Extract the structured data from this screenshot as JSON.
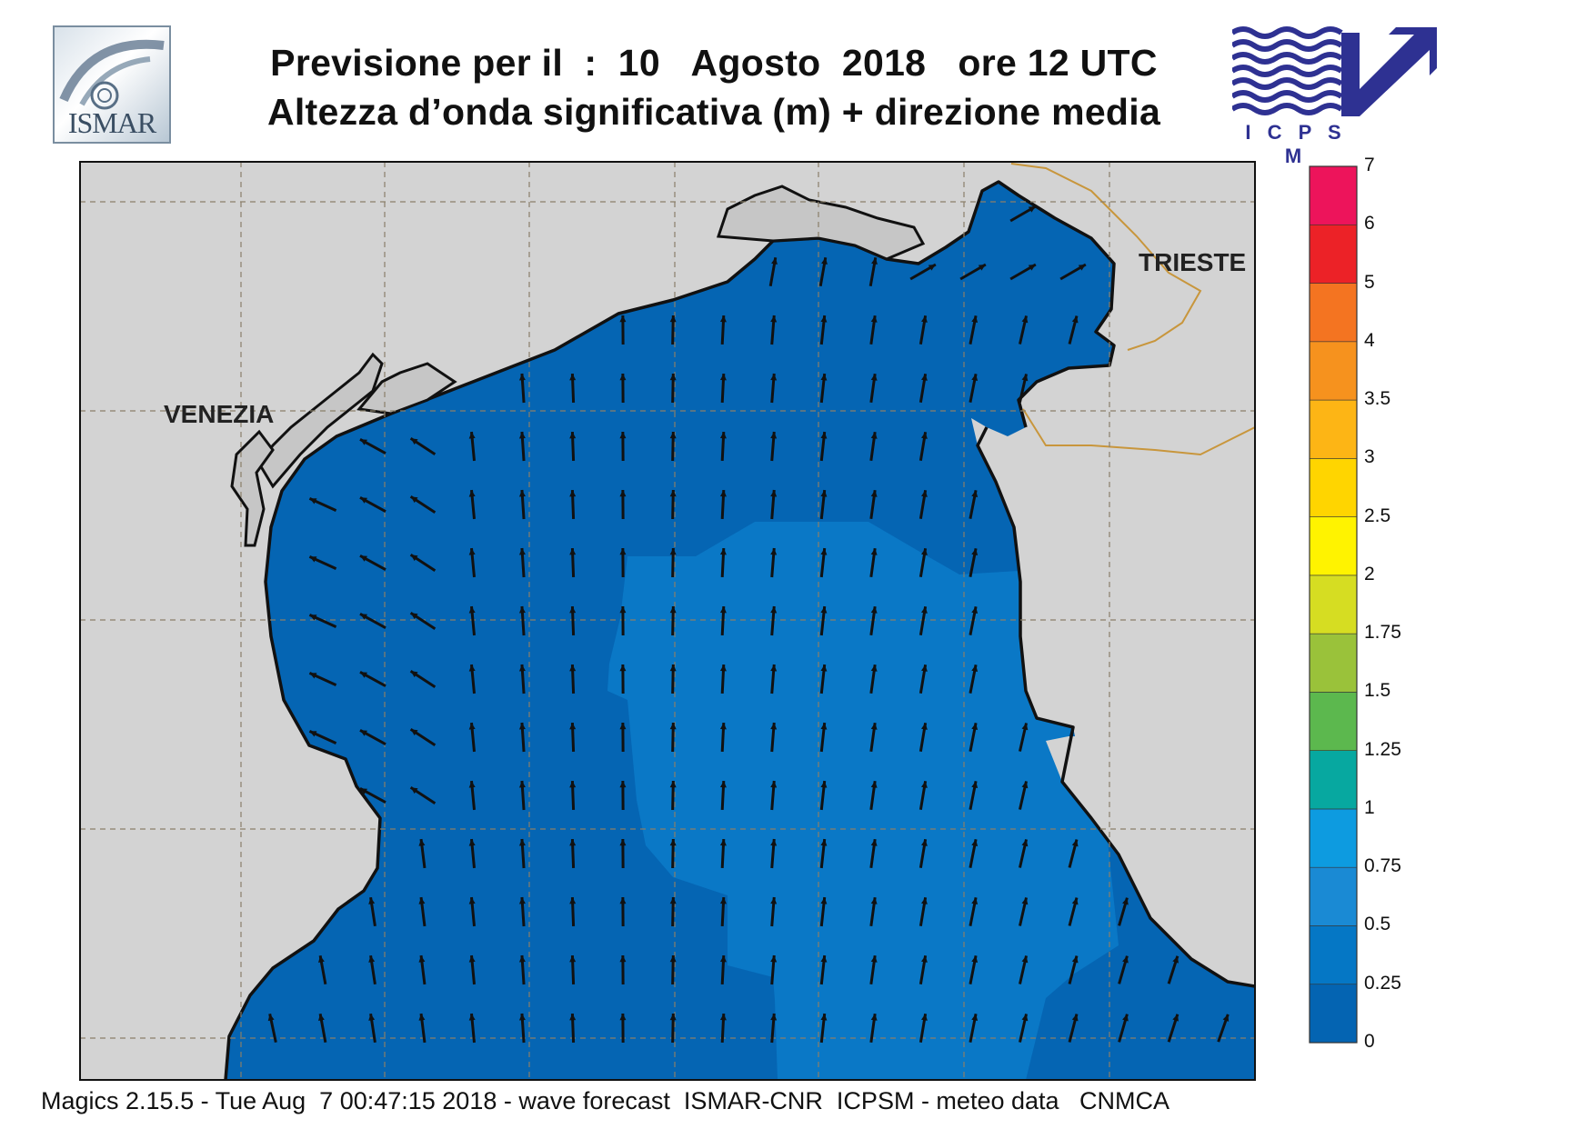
{
  "header": {
    "title_line1": "Previsione per il  :  10   Agosto  2018   ore 12 UTC",
    "title_line2": "Altezza d’onda significativa (m) + direzione media"
  },
  "logos": {
    "left": "ISMAR",
    "right": "I C P S M"
  },
  "map": {
    "cities": [
      {
        "name": "VENEZIA"
      },
      {
        "name": "TRIESTE"
      }
    ],
    "arrow_direction": "north / north-east",
    "sea_colors": {
      "dark": "#0565b3",
      "mid": "#0a78c6",
      "light": "#1a8ad1"
    },
    "land_color": "#d3d3d3"
  },
  "legend": {
    "labels": [
      "0",
      "0.25",
      "0.5",
      "0.75",
      "1",
      "1.25",
      "1.5",
      "1.75",
      "2",
      "2.5",
      "3",
      "3.5",
      "4",
      "5",
      "6",
      "7"
    ],
    "colors": [
      "#0464b2",
      "#0577c5",
      "#1a8ad4",
      "#0d9be0",
      "#07a8a0",
      "#5cb84e",
      "#9ac23a",
      "#d6dd22",
      "#fff300",
      "#ffd500",
      "#fdb515",
      "#f6921e",
      "#f47421",
      "#ec2227",
      "#ed145b"
    ]
  },
  "footer": {
    "text": "Magics 2.15.5 - Tue Aug  7 00:47:15 2018 - wave forecast  ISMAR-CNR  ICPSM - meteo data   CNMCA"
  }
}
